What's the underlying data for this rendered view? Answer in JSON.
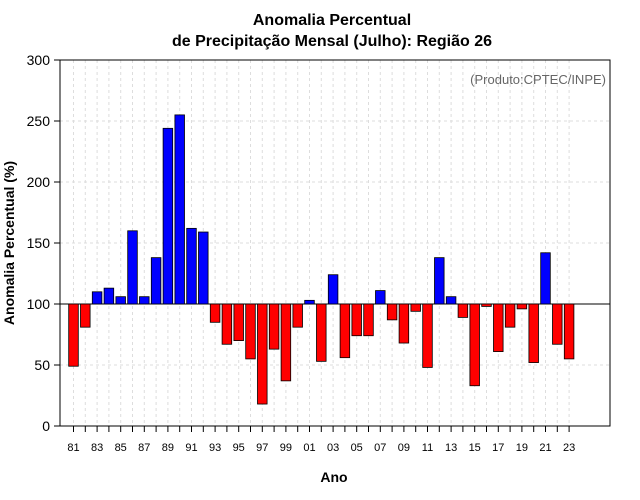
{
  "chart_data": {
    "type": "bar",
    "title": "Anomalia Percentual",
    "subtitle": "de Precipitação Mensal (Julho): Região 26",
    "xlabel": "Ano",
    "ylabel": "Anomalia Percentual (%)",
    "annotation": "(Produto:CPTEC/INPE)",
    "ylim": [
      0,
      300
    ],
    "yticks": [
      0,
      50,
      100,
      150,
      200,
      250,
      300
    ],
    "baseline": 100,
    "grid": true,
    "colors": {
      "above": "#0000ff",
      "below": "#ff0000",
      "edge": "#000000",
      "grid": "#dddddd"
    },
    "categories": [
      "81",
      "82",
      "83",
      "84",
      "85",
      "86",
      "87",
      "88",
      "89",
      "90",
      "91",
      "92",
      "93",
      "94",
      "95",
      "96",
      "97",
      "98",
      "99",
      "00",
      "01",
      "02",
      "03",
      "04",
      "05",
      "06",
      "07",
      "08",
      "09",
      "10",
      "11",
      "12",
      "13",
      "14",
      "15",
      "16",
      "17",
      "18",
      "19",
      "20",
      "21",
      "22",
      "23"
    ],
    "xtick_labels": [
      "81",
      "83",
      "85",
      "87",
      "89",
      "91",
      "93",
      "95",
      "97",
      "99",
      "01",
      "03",
      "05",
      "07",
      "09",
      "11",
      "13",
      "15",
      "17",
      "19",
      "21",
      "23"
    ],
    "values": [
      49,
      81,
      110,
      113,
      106,
      160,
      106,
      138,
      244,
      255,
      162,
      159,
      85,
      67,
      70,
      55,
      18,
      63,
      37,
      81,
      103,
      53,
      124,
      56,
      74,
      74,
      111,
      87,
      68,
      94,
      48,
      138,
      106,
      89,
      33,
      98,
      61,
      81,
      96,
      52,
      142,
      67,
      55
    ]
  }
}
